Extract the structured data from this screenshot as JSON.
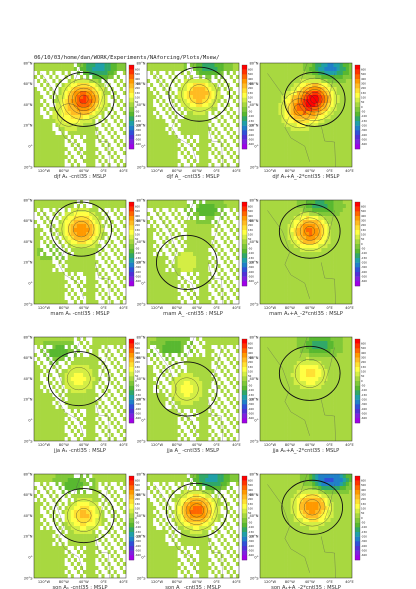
{
  "header": "06/10/03/home/dan/WORK/Experiments/NAforcing/Plots/Msew/",
  "colorbar": {
    "ticks": [
      "600",
      "500",
      "400",
      "300",
      "200",
      "150",
      "100",
      "50",
      "0",
      "-50",
      "-100",
      "-150",
      "-200",
      "-300",
      "-400",
      "-500",
      "-600"
    ],
    "colors": [
      "#ff0000",
      "#ff3300",
      "#ff6600",
      "#ff9900",
      "#ffbb22",
      "#ffe033",
      "#ffff44",
      "#d4ee44",
      "#a8d840",
      "#80c838",
      "#58b830",
      "#30a868",
      "#20a0a8",
      "#2080c8",
      "#3050d8",
      "#5030d8",
      "#8020e0",
      "#a000e8"
    ]
  },
  "axes": {
    "lat_labels": [
      "80°N",
      "60°N",
      "40°N",
      "20°N",
      "0°",
      "20°S"
    ],
    "lon_labels": [
      "120°W",
      "80°W",
      "40°W",
      "0°E",
      "40°E"
    ]
  },
  "chart_data": [
    {
      "type": "heatmap",
      "title": "djf A₁ -cntl35 : MSLP",
      "highs": [
        {
          "lon": -40,
          "lat": 45,
          "value": 500
        },
        {
          "lon": -70,
          "lat": 30,
          "value": 100
        }
      ],
      "lows": [
        {
          "lon": -10,
          "lat": 75,
          "value": -200
        }
      ],
      "zero_contours": true
    },
    {
      "type": "heatmap",
      "title": "djf A_ -cntl35 : MSLP",
      "highs": [
        {
          "lon": -35,
          "lat": 50,
          "value": 250
        }
      ],
      "lows": [
        {
          "lon": -15,
          "lat": 75,
          "value": -150
        }
      ],
      "zero_contours": true
    },
    {
      "type": "heatmap",
      "title": "djf A₁+A_-2*cntl35 : MSLP",
      "highs": [
        {
          "lon": -30,
          "lat": 45,
          "value": 600
        },
        {
          "lon": -60,
          "lat": 35,
          "value": 300
        }
      ],
      "lows": [
        {
          "lon": 0,
          "lat": 75,
          "value": -250
        }
      ],
      "zero_contours": true
    },
    {
      "type": "heatmap",
      "title": "mam A₁ -cntl35 : MSLP",
      "highs": [
        {
          "lon": -45,
          "lat": 52,
          "value": 350
        }
      ],
      "lows": [
        {
          "lon": -100,
          "lat": 30,
          "value": -50
        }
      ],
      "zero_contours": true
    },
    {
      "type": "heatmap",
      "title": "mam A_ -cntl35 : MSLP",
      "highs": [
        {
          "lon": -60,
          "lat": 20,
          "value": 50
        }
      ],
      "lows": [
        {
          "lon": -20,
          "lat": 70,
          "value": -100
        }
      ],
      "zero_contours": true
    },
    {
      "type": "heatmap",
      "title": "mam A₁+A_-2*cntl35 : MSLP",
      "highs": [
        {
          "lon": -40,
          "lat": 50,
          "value": 400
        }
      ],
      "lows": [
        {
          "lon": -20,
          "lat": 75,
          "value": -150
        }
      ],
      "zero_contours": true
    },
    {
      "type": "heatmap",
      "title": "jja A₁ -cntl35 : MSLP",
      "highs": [
        {
          "lon": -50,
          "lat": 40,
          "value": 100
        }
      ],
      "lows": [
        {
          "lon": -90,
          "lat": 65,
          "value": -100
        }
      ],
      "zero_contours": true
    },
    {
      "type": "heatmap",
      "title": "jja A_ -cntl35 : MSLP",
      "highs": [
        {
          "lon": -60,
          "lat": 30,
          "value": 100
        }
      ],
      "lows": [
        {
          "lon": -90,
          "lat": 70,
          "value": -100
        }
      ],
      "zero_contours": true
    },
    {
      "type": "heatmap",
      "title": "jja A₁+A_-2*cntl35 : MSLP",
      "highs": [
        {
          "lon": -40,
          "lat": 45,
          "value": 150
        }
      ],
      "lows": [
        {
          "lon": -20,
          "lat": 72,
          "value": -150
        }
      ],
      "zero_contours": true
    },
    {
      "type": "heatmap",
      "title": "son A₁ -cntl35 : MSLP",
      "highs": [
        {
          "lon": -40,
          "lat": 40,
          "value": 200
        }
      ],
      "lows": [
        {
          "lon": -60,
          "lat": 70,
          "value": -100
        }
      ],
      "zero_contours": true
    },
    {
      "type": "heatmap",
      "title": "son A_ -cntl35 : MSLP",
      "highs": [
        {
          "lon": -40,
          "lat": 45,
          "value": 450
        }
      ],
      "lows": [
        {
          "lon": -10,
          "lat": 75,
          "value": -200
        }
      ],
      "zero_contours": true
    },
    {
      "type": "heatmap",
      "title": "son A₁+A_-2*cntl35 : MSLP",
      "highs": [
        {
          "lon": -35,
          "lat": 48,
          "value": 350
        }
      ],
      "lows": [
        {
          "lon": 0,
          "lat": 75,
          "value": -350
        }
      ],
      "zero_contours": true
    }
  ]
}
